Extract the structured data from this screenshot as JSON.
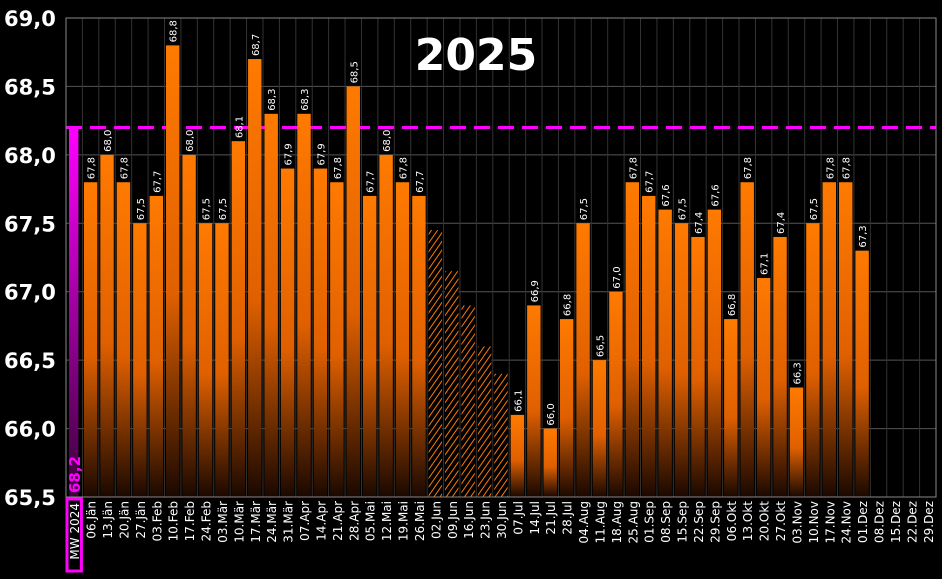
{
  "chart_data": {
    "type": "bar",
    "title": "2025",
    "xlabel": "",
    "ylabel": "",
    "ylim": [
      65.5,
      69.0
    ],
    "yticks": [
      "65,5",
      "66,0",
      "66,5",
      "67,0",
      "67,5",
      "68,0",
      "68,5",
      "69,0"
    ],
    "grid": true,
    "reference": {
      "category": "MW 2024",
      "value": 68.2,
      "label": "68,2",
      "color": "#ff00ff"
    },
    "categories": [
      "06.Jän",
      "13.Jän",
      "20.Jän",
      "27.Jän",
      "03.Feb",
      "10.Feb",
      "17.Feb",
      "24.Feb",
      "03.Mär",
      "10.Mär",
      "17.Mär",
      "24.Mär",
      "31.Mär",
      "07.Apr",
      "14.Apr",
      "21.Apr",
      "28.Apr",
      "05.Mai",
      "12.Mai",
      "19.Mai",
      "26.Mai",
      "02.Jun",
      "09.Jun",
      "16.Jun",
      "23.Jun",
      "30.Jun",
      "07.Jul",
      "14.Jul",
      "21.Jul",
      "28.Jul",
      "04.Aug",
      "11.Aug",
      "18.Aug",
      "25.Aug",
      "01.Sep",
      "08.Sep",
      "15.Sep",
      "22.Sep",
      "29.Sep",
      "06.Okt",
      "13.Okt",
      "20.Okt",
      "27.Okt",
      "03.Nov",
      "10.Nov",
      "17.Nov",
      "24.Nov",
      "01.Dez",
      "08.Dez",
      "15.Dez",
      "22.Dez",
      "29.Dez"
    ],
    "values": [
      67.8,
      68.0,
      67.8,
      67.5,
      67.7,
      68.8,
      68.0,
      67.5,
      67.5,
      68.1,
      68.7,
      68.3,
      67.9,
      68.3,
      67.9,
      67.8,
      68.5,
      67.7,
      68.0,
      67.8,
      67.7,
      null,
      null,
      null,
      null,
      null,
      66.1,
      66.9,
      66.0,
      66.8,
      67.5,
      66.5,
      67.0,
      67.8,
      67.7,
      67.6,
      67.5,
      67.4,
      67.6,
      66.8,
      67.8,
      67.1,
      67.4,
      66.3,
      67.5,
      67.8,
      67.8,
      67.3,
      null,
      null,
      null,
      null
    ],
    "value_labels": [
      "67,8",
      "68,0",
      "67,8",
      "67,5",
      "67,7",
      "68,8",
      "68,0",
      "67,5",
      "67,5",
      "68,1",
      "68,7",
      "68,3",
      "67,9",
      "68,3",
      "67,9",
      "67,8",
      "68,5",
      "67,7",
      "68,0",
      "67,8",
      "67,7",
      "",
      "",
      "",
      "",
      "",
      "66,1",
      "66,9",
      "66,0",
      "66,8",
      "67,5",
      "66,5",
      "67,0",
      "67,8",
      "67,7",
      "67,6",
      "67,5",
      "67,4",
      "67,6",
      "66,8",
      "67,8",
      "67,1",
      "67,4",
      "66,3",
      "67,5",
      "67,8",
      "67,8",
      "67,3",
      "",
      "",
      "",
      ""
    ],
    "hatched_values": [
      null,
      null,
      null,
      null,
      null,
      null,
      null,
      null,
      null,
      null,
      null,
      null,
      null,
      null,
      null,
      null,
      null,
      null,
      null,
      null,
      null,
      67.45,
      67.15,
      66.9,
      66.6,
      66.4,
      null,
      null,
      null,
      null,
      null,
      null,
      null,
      null,
      null,
      null,
      null,
      null,
      null,
      null,
      null,
      null,
      null,
      null,
      null,
      null,
      null,
      null,
      null,
      null,
      null,
      null
    ],
    "colors": {
      "bar_top": "#ff7a00",
      "bar_bottom": "#1a0a00",
      "reference": "#ff00ff"
    }
  }
}
